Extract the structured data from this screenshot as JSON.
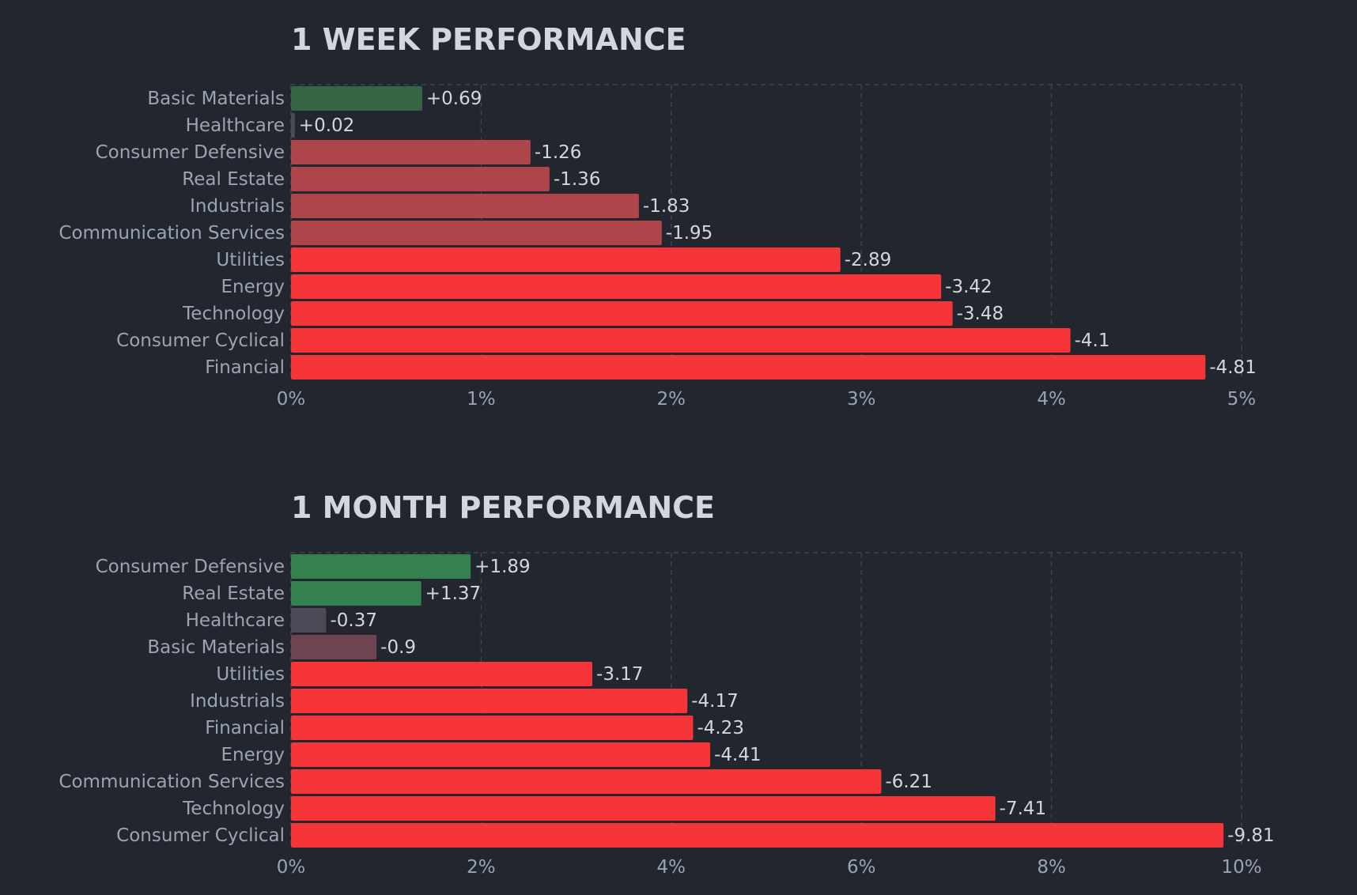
{
  "colors": {
    "background": "#22262f",
    "title": "#d3d6de",
    "category_label": "#9ba3b4",
    "value_label": "#d3d6de",
    "grid": "#3c4250",
    "positive_strong": "#34804f",
    "positive_weak": "#356745",
    "neutral": "#4d4a58",
    "negative_weak": "#6f4451",
    "negative_mid": "#ad454b",
    "negative_strong": "#f63538"
  },
  "chart_data": [
    {
      "type": "bar",
      "orientation": "horizontal",
      "title": "1 WEEK PERFORMANCE",
      "categories": [
        "Basic Materials",
        "Healthcare",
        "Consumer Defensive",
        "Real Estate",
        "Industrials",
        "Communication Services",
        "Utilities",
        "Energy",
        "Technology",
        "Consumer Cyclical",
        "Financial"
      ],
      "values": [
        0.69,
        0.02,
        -1.26,
        -1.36,
        -1.83,
        -1.95,
        -2.89,
        -3.42,
        -3.48,
        -4.1,
        -4.81
      ],
      "value_labels": [
        "+0.69",
        "+0.02",
        "-1.26",
        "-1.36",
        "-1.83",
        "-1.95",
        "-2.89",
        "-3.42",
        "-3.48",
        "-4.1",
        "-4.81"
      ],
      "xlim": [
        0,
        5
      ],
      "xticks": [
        "0%",
        "1%",
        "2%",
        "3%",
        "4%",
        "5%"
      ],
      "bar_length": "absolute value",
      "grid": true,
      "legend": "none"
    },
    {
      "type": "bar",
      "orientation": "horizontal",
      "title": "1 MONTH PERFORMANCE",
      "categories": [
        "Consumer Defensive",
        "Real Estate",
        "Healthcare",
        "Basic Materials",
        "Utilities",
        "Industrials",
        "Financial",
        "Energy",
        "Communication Services",
        "Technology",
        "Consumer Cyclical"
      ],
      "values": [
        1.89,
        1.37,
        -0.37,
        -0.9,
        -3.17,
        -4.17,
        -4.23,
        -4.41,
        -6.21,
        -7.41,
        -9.81
      ],
      "value_labels": [
        "+1.89",
        "+1.37",
        "-0.37",
        "-0.9",
        "-3.17",
        "-4.17",
        "-4.23",
        "-4.41",
        "-6.21",
        "-7.41",
        "-9.81"
      ],
      "xlim": [
        0,
        10
      ],
      "xticks": [
        "0%",
        "2%",
        "4%",
        "6%",
        "8%",
        "10%"
      ],
      "bar_length": "absolute value",
      "grid": true,
      "legend": "none"
    }
  ]
}
